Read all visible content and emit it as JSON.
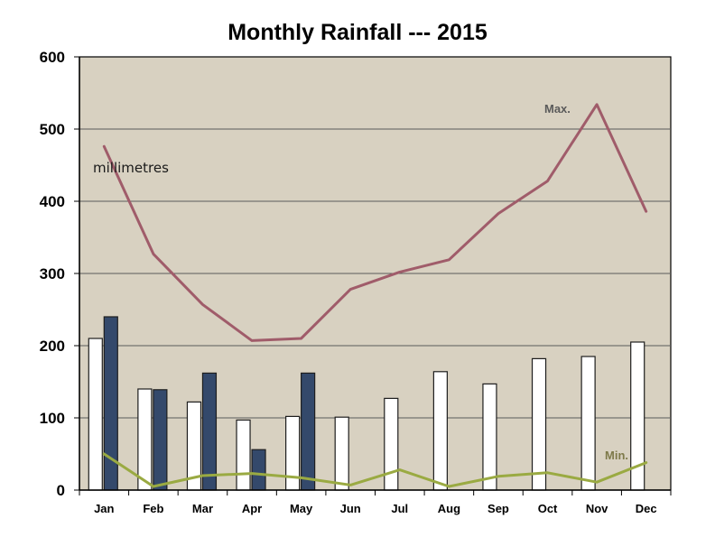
{
  "chart_data": {
    "type": "bar",
    "title": "Monthly Rainfall --- 2015",
    "unit_annotation": "millimetres",
    "categories": [
      "Jan",
      "Feb",
      "Mar",
      "Apr",
      "May",
      "Jun",
      "Jul",
      "Aug",
      "Sep",
      "Oct",
      "Nov",
      "Dec"
    ],
    "ylim": [
      0,
      600
    ],
    "yticks": [
      0,
      100,
      200,
      300,
      400,
      500,
      600
    ],
    "grid": true,
    "bar_series": [
      {
        "values": [
          210,
          140,
          122,
          97,
          102,
          101,
          127,
          164,
          147,
          182,
          185,
          205
        ],
        "color": "#ffffff"
      },
      {
        "values": [
          240,
          139,
          162,
          56,
          162,
          null,
          null,
          null,
          null,
          null,
          null,
          null
        ],
        "color": "#34496b"
      }
    ],
    "line_series": [
      {
        "name": "Max.",
        "values": [
          476,
          327,
          257,
          207,
          210,
          278,
          302,
          319,
          383,
          428,
          534,
          386
        ],
        "color": "#a05c6a"
      },
      {
        "name": "Min.",
        "values": [
          50,
          5,
          20,
          23,
          17,
          7,
          28,
          5,
          19,
          24,
          11,
          38
        ],
        "color": "#9aaa42"
      }
    ],
    "colors": {
      "plot_background": "#d8d1c1",
      "grid": "#5a5a5a",
      "max_label": "#5a5a5a",
      "min_label": "#7e7a4a"
    }
  }
}
